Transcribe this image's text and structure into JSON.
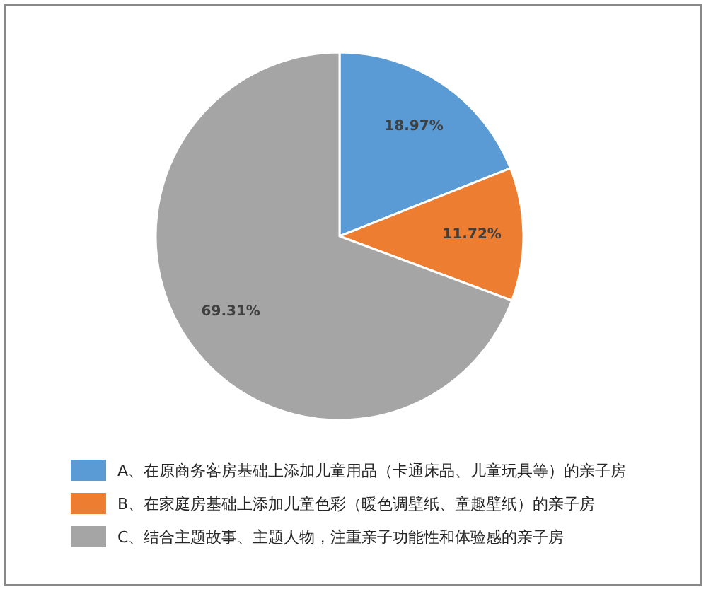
{
  "chart_data": {
    "type": "pie",
    "categories": [
      "A、在原商务客房基础上添加儿童用品（卡通床品、儿童玩具等）的亲子房",
      "B、在家庭房基础上添加儿童色彩（暖色调壁纸、童趣壁纸）的亲子房",
      "C、结合主题故事、主题人物，注重亲子功能性和体验感的亲子房"
    ],
    "values": [
      18.97,
      11.72,
      69.31
    ],
    "colors": [
      "#5b9bd5",
      "#ed7d31",
      "#a5a5a5"
    ],
    "value_labels": [
      "18.97%",
      "11.72%",
      "69.31%"
    ],
    "legend": "bottom"
  }
}
